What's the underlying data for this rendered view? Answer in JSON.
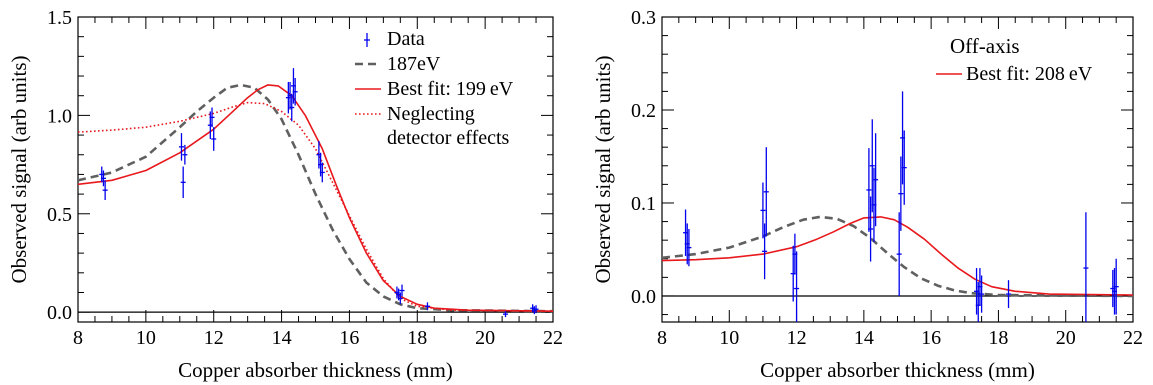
{
  "chart_data": [
    {
      "type": "line",
      "xlabel": "Copper absorber thickness (mm)",
      "ylabel": "Observed signal (arb units)",
      "xlim": [
        8,
        22
      ],
      "ylim": [
        -0.05,
        1.5
      ],
      "x_ticks": [
        "8",
        "10",
        "12",
        "14",
        "16",
        "18",
        "20",
        "22"
      ],
      "y_ticks": [
        "0.0",
        "0.5",
        "1.0",
        "1.5"
      ],
      "y_tick_values": [
        0,
        0.5,
        1.0,
        1.5
      ],
      "annotation": "",
      "legend_position": "top-right",
      "legend": [
        {
          "label": "Data",
          "style": "errorbar",
          "color": "#0000ee"
        },
        {
          "label": "187eV",
          "style": "dashed",
          "color": "#606060"
        },
        {
          "label": "Best fit: 199 eV",
          "style": "solid",
          "color": "#e8181c"
        },
        {
          "label": "Neglecting",
          "label2": "detector effects",
          "style": "dotted",
          "color": "#e8181c"
        }
      ],
      "series": [
        {
          "name": "187eV",
          "style": "dashed",
          "color": "#606060",
          "points": [
            [
              8,
              0.67
            ],
            [
              9,
              0.71
            ],
            [
              10,
              0.79
            ],
            [
              11,
              0.94
            ],
            [
              11.5,
              1.02
            ],
            [
              12,
              1.09
            ],
            [
              12.4,
              1.14
            ],
            [
              12.8,
              1.155
            ],
            [
              13.2,
              1.14
            ],
            [
              13.6,
              1.08
            ],
            [
              14,
              0.98
            ],
            [
              14.5,
              0.8
            ],
            [
              15,
              0.6
            ],
            [
              15.5,
              0.42
            ],
            [
              16,
              0.27
            ],
            [
              16.5,
              0.15
            ],
            [
              17,
              0.08
            ],
            [
              17.5,
              0.04
            ],
            [
              18,
              0.02
            ],
            [
              19,
              0.01
            ],
            [
              22,
              0.005
            ]
          ]
        },
        {
          "name": "Best fit: 199 eV",
          "style": "solid",
          "color": "#e8181c",
          "points": [
            [
              8,
              0.65
            ],
            [
              9,
              0.67
            ],
            [
              10,
              0.72
            ],
            [
              11,
              0.81
            ],
            [
              12,
              0.93
            ],
            [
              12.5,
              1.01
            ],
            [
              13,
              1.09
            ],
            [
              13.3,
              1.13
            ],
            [
              13.6,
              1.155
            ],
            [
              13.9,
              1.15
            ],
            [
              14.3,
              1.1
            ],
            [
              14.7,
              1.0
            ],
            [
              15.2,
              0.83
            ],
            [
              15.6,
              0.65
            ],
            [
              16,
              0.48
            ],
            [
              16.5,
              0.3
            ],
            [
              17,
              0.16
            ],
            [
              17.5,
              0.08
            ],
            [
              18,
              0.04
            ],
            [
              18.5,
              0.02
            ],
            [
              19.5,
              0.01
            ],
            [
              22,
              0.005
            ]
          ]
        },
        {
          "name": "Neglecting detector effects",
          "style": "dotted",
          "color": "#e8181c",
          "points": [
            [
              8,
              0.915
            ],
            [
              9,
              0.925
            ],
            [
              10,
              0.94
            ],
            [
              11,
              0.97
            ],
            [
              12,
              1.01
            ],
            [
              12.6,
              1.045
            ],
            [
              13,
              1.065
            ],
            [
              13.5,
              1.06
            ],
            [
              14,
              1.02
            ],
            [
              14.5,
              0.95
            ],
            [
              15,
              0.83
            ],
            [
              15.5,
              0.66
            ],
            [
              16,
              0.49
            ],
            [
              16.5,
              0.32
            ],
            [
              17,
              0.17
            ],
            [
              17.5,
              0.07
            ],
            [
              18,
              0.03
            ],
            [
              19,
              0.01
            ],
            [
              22,
              0.005
            ]
          ]
        }
      ],
      "data_points": [
        {
          "x": 8.7,
          "y": 0.7,
          "err": 0.04
        },
        {
          "x": 8.75,
          "y": 0.68,
          "err": 0.04
        },
        {
          "x": 8.8,
          "y": 0.62,
          "err": 0.05
        },
        {
          "x": 11.05,
          "y": 0.84,
          "err": 0.07
        },
        {
          "x": 11.1,
          "y": 0.66,
          "err": 0.08
        },
        {
          "x": 11.15,
          "y": 0.8,
          "err": 0.05
        },
        {
          "x": 11.9,
          "y": 0.95,
          "err": 0.07
        },
        {
          "x": 11.95,
          "y": 0.99,
          "err": 0.05
        },
        {
          "x": 12.0,
          "y": 0.88,
          "err": 0.06
        },
        {
          "x": 14.2,
          "y": 1.09,
          "err": 0.08
        },
        {
          "x": 14.25,
          "y": 1.1,
          "err": 0.07
        },
        {
          "x": 14.3,
          "y": 1.04,
          "err": 0.07
        },
        {
          "x": 14.35,
          "y": 1.15,
          "err": 0.09
        },
        {
          "x": 14.4,
          "y": 1.12,
          "err": 0.07
        },
        {
          "x": 15.1,
          "y": 0.8,
          "err": 0.07
        },
        {
          "x": 15.15,
          "y": 0.75,
          "err": 0.06
        },
        {
          "x": 15.2,
          "y": 0.71,
          "err": 0.05
        },
        {
          "x": 17.4,
          "y": 0.1,
          "err": 0.03
        },
        {
          "x": 17.45,
          "y": 0.09,
          "err": 0.03
        },
        {
          "x": 17.5,
          "y": 0.07,
          "err": 0.03
        },
        {
          "x": 17.55,
          "y": 0.11,
          "err": 0.03
        },
        {
          "x": 18.3,
          "y": 0.03,
          "err": 0.02
        },
        {
          "x": 20.6,
          "y": -0.01,
          "err": 0.015
        },
        {
          "x": 21.4,
          "y": 0.02,
          "err": 0.02
        },
        {
          "x": 21.45,
          "y": 0.01,
          "err": 0.02
        },
        {
          "x": 21.5,
          "y": 0.015,
          "err": 0.02
        }
      ]
    },
    {
      "type": "line",
      "xlabel": "Copper absorber thickness (mm)",
      "ylabel": "Observed signal (arb units)",
      "xlim": [
        8,
        22
      ],
      "ylim": [
        -0.028,
        0.3
      ],
      "x_ticks": [
        "8",
        "10",
        "12",
        "14",
        "16",
        "18",
        "20",
        "22"
      ],
      "y_ticks": [
        "0.0",
        "0.1",
        "0.2",
        "0.3"
      ],
      "y_tick_values": [
        0,
        0.1,
        0.2,
        0.3
      ],
      "annotation": "Off-axis",
      "legend_position": "top-right",
      "legend": [
        {
          "label": "Best fit: 208 eV",
          "style": "solid",
          "color": "#e8181c"
        }
      ],
      "series": [
        {
          "name": "",
          "style": "dashed",
          "color": "#606060",
          "points": [
            [
              8,
              0.041
            ],
            [
              9,
              0.045
            ],
            [
              10,
              0.052
            ],
            [
              11,
              0.064
            ],
            [
              11.6,
              0.074
            ],
            [
              12.2,
              0.082
            ],
            [
              12.7,
              0.085
            ],
            [
              13.2,
              0.083
            ],
            [
              13.7,
              0.075
            ],
            [
              14.2,
              0.062
            ],
            [
              14.7,
              0.046
            ],
            [
              15.2,
              0.031
            ],
            [
              15.7,
              0.019
            ],
            [
              16.2,
              0.011
            ],
            [
              16.7,
              0.006
            ],
            [
              17.2,
              0.003
            ],
            [
              18,
              0.001
            ],
            [
              22,
              0.0
            ]
          ]
        },
        {
          "name": "Best fit: 208 eV",
          "style": "solid",
          "color": "#e8181c",
          "points": [
            [
              8,
              0.038
            ],
            [
              9,
              0.039
            ],
            [
              10,
              0.041
            ],
            [
              11,
              0.045
            ],
            [
              12,
              0.053
            ],
            [
              12.6,
              0.061
            ],
            [
              13.1,
              0.069
            ],
            [
              13.6,
              0.078
            ],
            [
              14,
              0.084
            ],
            [
              14.5,
              0.085
            ],
            [
              14.9,
              0.082
            ],
            [
              15.3,
              0.074
            ],
            [
              15.8,
              0.061
            ],
            [
              16.3,
              0.045
            ],
            [
              16.8,
              0.03
            ],
            [
              17.3,
              0.018
            ],
            [
              17.8,
              0.01
            ],
            [
              18.5,
              0.005
            ],
            [
              19.5,
              0.002
            ],
            [
              22,
              0.001
            ]
          ]
        }
      ],
      "data_points": [
        {
          "x": 8.7,
          "y": 0.068,
          "err": 0.025
        },
        {
          "x": 8.75,
          "y": 0.056,
          "err": 0.022
        },
        {
          "x": 8.8,
          "y": 0.052,
          "err": 0.02
        },
        {
          "x": 11.0,
          "y": 0.092,
          "err": 0.03
        },
        {
          "x": 11.05,
          "y": 0.048,
          "err": 0.03
        },
        {
          "x": 11.1,
          "y": 0.112,
          "err": 0.048
        },
        {
          "x": 11.9,
          "y": 0.024,
          "err": 0.03
        },
        {
          "x": 11.95,
          "y": 0.045,
          "err": 0.022
        },
        {
          "x": 12.0,
          "y": 0.008,
          "err": 0.04
        },
        {
          "x": 14.15,
          "y": 0.114,
          "err": 0.045
        },
        {
          "x": 14.2,
          "y": 0.072,
          "err": 0.035
        },
        {
          "x": 14.25,
          "y": 0.14,
          "err": 0.05
        },
        {
          "x": 14.3,
          "y": 0.098,
          "err": 0.04
        },
        {
          "x": 14.35,
          "y": 0.125,
          "err": 0.05
        },
        {
          "x": 15.05,
          "y": 0.045,
          "err": 0.045
        },
        {
          "x": 15.1,
          "y": 0.11,
          "err": 0.04
        },
        {
          "x": 15.15,
          "y": 0.17,
          "err": 0.05
        },
        {
          "x": 15.2,
          "y": 0.138,
          "err": 0.04
        },
        {
          "x": 17.35,
          "y": 0.005,
          "err": 0.025
        },
        {
          "x": 17.4,
          "y": -0.01,
          "err": 0.025
        },
        {
          "x": 17.45,
          "y": 0.01,
          "err": 0.02
        },
        {
          "x": 17.5,
          "y": 0.002,
          "err": 0.02
        },
        {
          "x": 18.3,
          "y": 0.002,
          "err": 0.015
        },
        {
          "x": 20.6,
          "y": 0.03,
          "err": 0.06
        },
        {
          "x": 21.4,
          "y": 0.008,
          "err": 0.02
        },
        {
          "x": 21.45,
          "y": 0.005,
          "err": 0.025
        },
        {
          "x": 21.5,
          "y": 0.01,
          "err": 0.03
        }
      ]
    }
  ]
}
